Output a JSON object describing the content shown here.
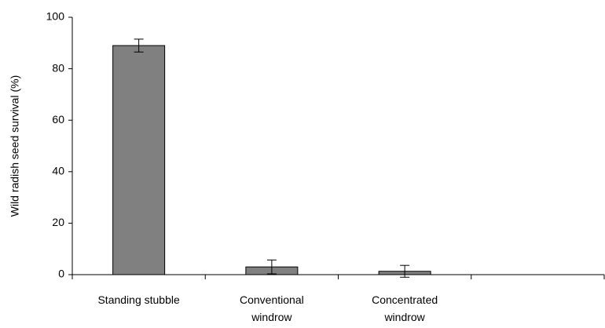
{
  "chart_data": {
    "type": "bar",
    "y_label": "Wild radish seed survival (%)",
    "categories": [
      "Standing stubble",
      "Conventional windrow",
      "Concentrated windrow",
      null
    ],
    "values": [
      89,
      3,
      1.3,
      null
    ],
    "errors": [
      2.5,
      2.7,
      2.3,
      null
    ],
    "color": "#808080",
    "ylim": [
      0,
      100
    ],
    "yticks": [
      0,
      20,
      40,
      60,
      80,
      100
    ],
    "grid": false
  }
}
